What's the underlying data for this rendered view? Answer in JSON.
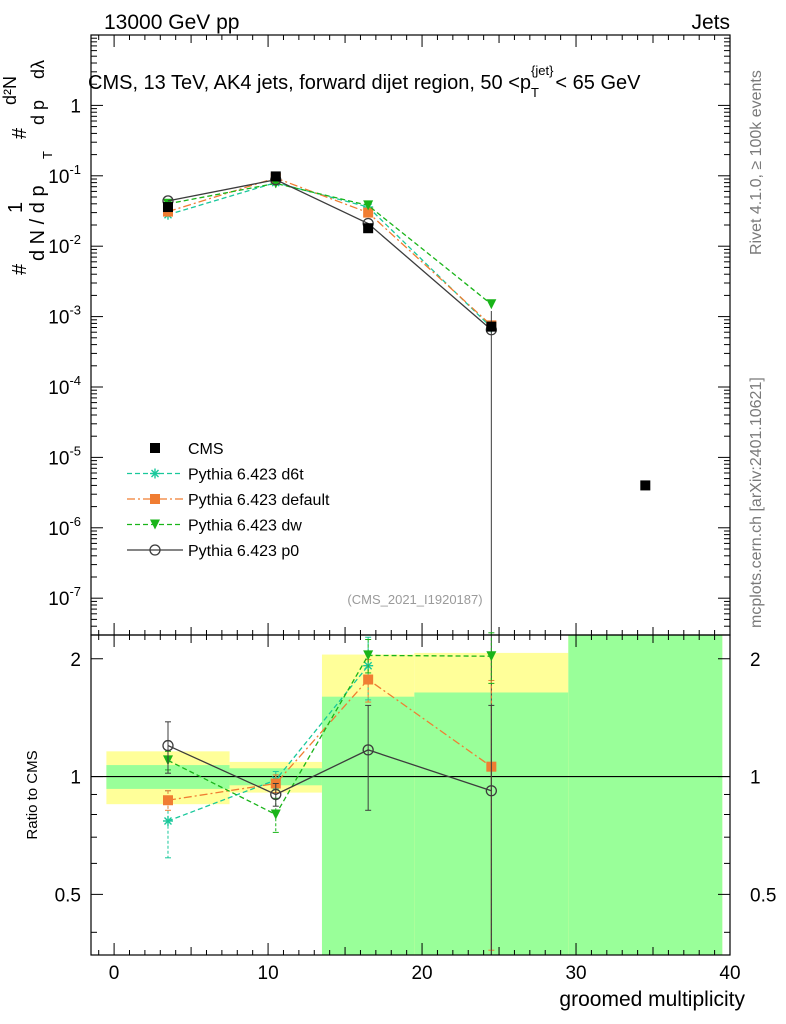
{
  "header": {
    "left_text": "13000 GeV pp",
    "right_text": "Jets"
  },
  "side_text": {
    "rivet": "Rivet 4.1.0, ≥ 100k events",
    "mcplots": "mcplots.cern.ch [arXiv:2401.10621]"
  },
  "main_panel": {
    "title": "CMS, 13 TeV, AK4 jets, forward dijet region, 50 < p_T^{jet} < 65 GeV",
    "title_parts": {
      "prefix": "CMS, 13 TeV, AK4 jets, forward dijet region, 50 <p",
      "sub": "T",
      "sup": "{jet}",
      "suffix": "< 65 GeV"
    },
    "ylabel_parts": {
      "hash": "#",
      "one": "1",
      "dN": "d N / d p",
      "T": "T",
      "hash2": "#",
      "d2N": "d²N",
      "dpT": "d p",
      "dlambda": "dλ"
    },
    "watermark": "(CMS_2021_I1920187)"
  },
  "legend": {
    "entries": [
      {
        "label": "CMS",
        "color": "#000000",
        "marker": "square",
        "line": "none"
      },
      {
        "label": "Pythia 6.423 d6t",
        "color": "#19c89b",
        "marker": "star",
        "line": "dashed"
      },
      {
        "label": "Pythia 6.423 default",
        "color": "#f07d32",
        "marker": "square",
        "line": "dashdot"
      },
      {
        "label": "Pythia 6.423 dw",
        "color": "#19b419",
        "marker": "triangle-down",
        "line": "dashed"
      },
      {
        "label": "Pythia 6.423 p0",
        "color": "#3c3c3c",
        "marker": "circle-open",
        "line": "solid"
      }
    ]
  },
  "ratio_panel": {
    "ylabel": "Ratio to CMS",
    "xlabel": "groomed multiplicity"
  },
  "chart_data": [
    {
      "type": "line",
      "title": "CMS, 13 TeV, AK4 jets, forward dijet region, 50 < p_T^{jet} < 65 GeV",
      "xlabel": "groomed multiplicity",
      "ylabel": "1/dN/dpT d2N/dpT dlambda",
      "yscale": "log",
      "xlim": [
        -1.5,
        40
      ],
      "ylim": [
        3e-08,
        10
      ],
      "x_ticks": [
        0,
        10,
        20,
        30,
        40
      ],
      "y_tick_labels": [
        "1",
        "10^-1",
        "10^-2",
        "10^-3",
        "10^-4",
        "10^-5",
        "10^-6",
        "10^-7"
      ],
      "data_points": {
        "name": "CMS",
        "x": [
          3.5,
          10.5,
          16.5,
          24.5,
          34.5
        ],
        "y": [
          0.036,
          0.098,
          0.018,
          0.00072,
          4e-06
        ]
      },
      "series": [
        {
          "name": "Pythia 6.423 d6t",
          "x": [
            3.5,
            10.5,
            16.5,
            24.5
          ],
          "y": [
            0.028,
            0.08,
            0.036,
            0.0007
          ]
        },
        {
          "name": "Pythia 6.423 default",
          "x": [
            3.5,
            10.5,
            16.5,
            24.5
          ],
          "y": [
            0.031,
            0.093,
            0.03,
            0.00075
          ]
        },
        {
          "name": "Pythia 6.423 dw",
          "x": [
            3.5,
            10.5,
            16.5,
            24.5
          ],
          "y": [
            0.04,
            0.078,
            0.038,
            0.0015
          ]
        },
        {
          "name": "Pythia 6.423 p0",
          "x": [
            3.5,
            10.5,
            16.5,
            24.5
          ],
          "y": [
            0.044,
            0.088,
            0.021,
            0.00065
          ]
        }
      ]
    },
    {
      "type": "line",
      "xlabel": "groomed multiplicity",
      "ylabel": "Ratio to CMS",
      "xlim": [
        -1.5,
        40
      ],
      "ylim": [
        0.35,
        2.3
      ],
      "y_ticks": [
        0.5,
        1,
        2
      ],
      "reference_line": 1,
      "uncertainty_bands": [
        {
          "x0": -0.5,
          "x1": 7.5,
          "inner": [
            0.93,
            1.07
          ],
          "outer": [
            0.85,
            1.16
          ]
        },
        {
          "x0": 7.5,
          "x1": 13.5,
          "inner": [
            0.95,
            1.05
          ],
          "outer": [
            0.91,
            1.09
          ]
        },
        {
          "x0": 13.5,
          "x1": 19.5,
          "inner": [
            0.35,
            1.6
          ],
          "outer": [
            0.35,
            2.05
          ]
        },
        {
          "x0": 19.5,
          "x1": 29.5,
          "inner": [
            0.35,
            1.64
          ],
          "outer": [
            0.35,
            2.07
          ]
        },
        {
          "x0": 29.5,
          "x1": 39.5,
          "inner": [
            0.35,
            2.3
          ],
          "outer": [
            0.35,
            2.3
          ]
        }
      ],
      "series": [
        {
          "name": "Pythia 6.423 d6t",
          "x": [
            3.5,
            10.5,
            16.5
          ],
          "y": [
            0.77,
            0.98,
            1.92
          ],
          "err": [
            0.15,
            0.05,
            0.35
          ]
        },
        {
          "name": "Pythia 6.423 default",
          "x": [
            3.5,
            10.5,
            16.5,
            24.5
          ],
          "y": [
            0.87,
            0.96,
            1.77,
            1.06
          ],
          "err": [
            0.05,
            0.05,
            0.22,
            0.7
          ]
        },
        {
          "name": "Pythia 6.423 dw",
          "x": [
            3.5,
            10.5,
            16.5,
            24.5
          ],
          "y": [
            1.1,
            0.8,
            2.04,
            2.03
          ],
          "err": [
            0.06,
            0.08,
            0.2,
            0.3
          ]
        },
        {
          "name": "Pythia 6.423 p0",
          "x": [
            3.5,
            10.5,
            16.5,
            24.5
          ],
          "y": [
            1.2,
            0.9,
            1.17,
            0.92
          ],
          "err": [
            0.18,
            0.06,
            0.35,
            0.6
          ]
        }
      ]
    }
  ]
}
